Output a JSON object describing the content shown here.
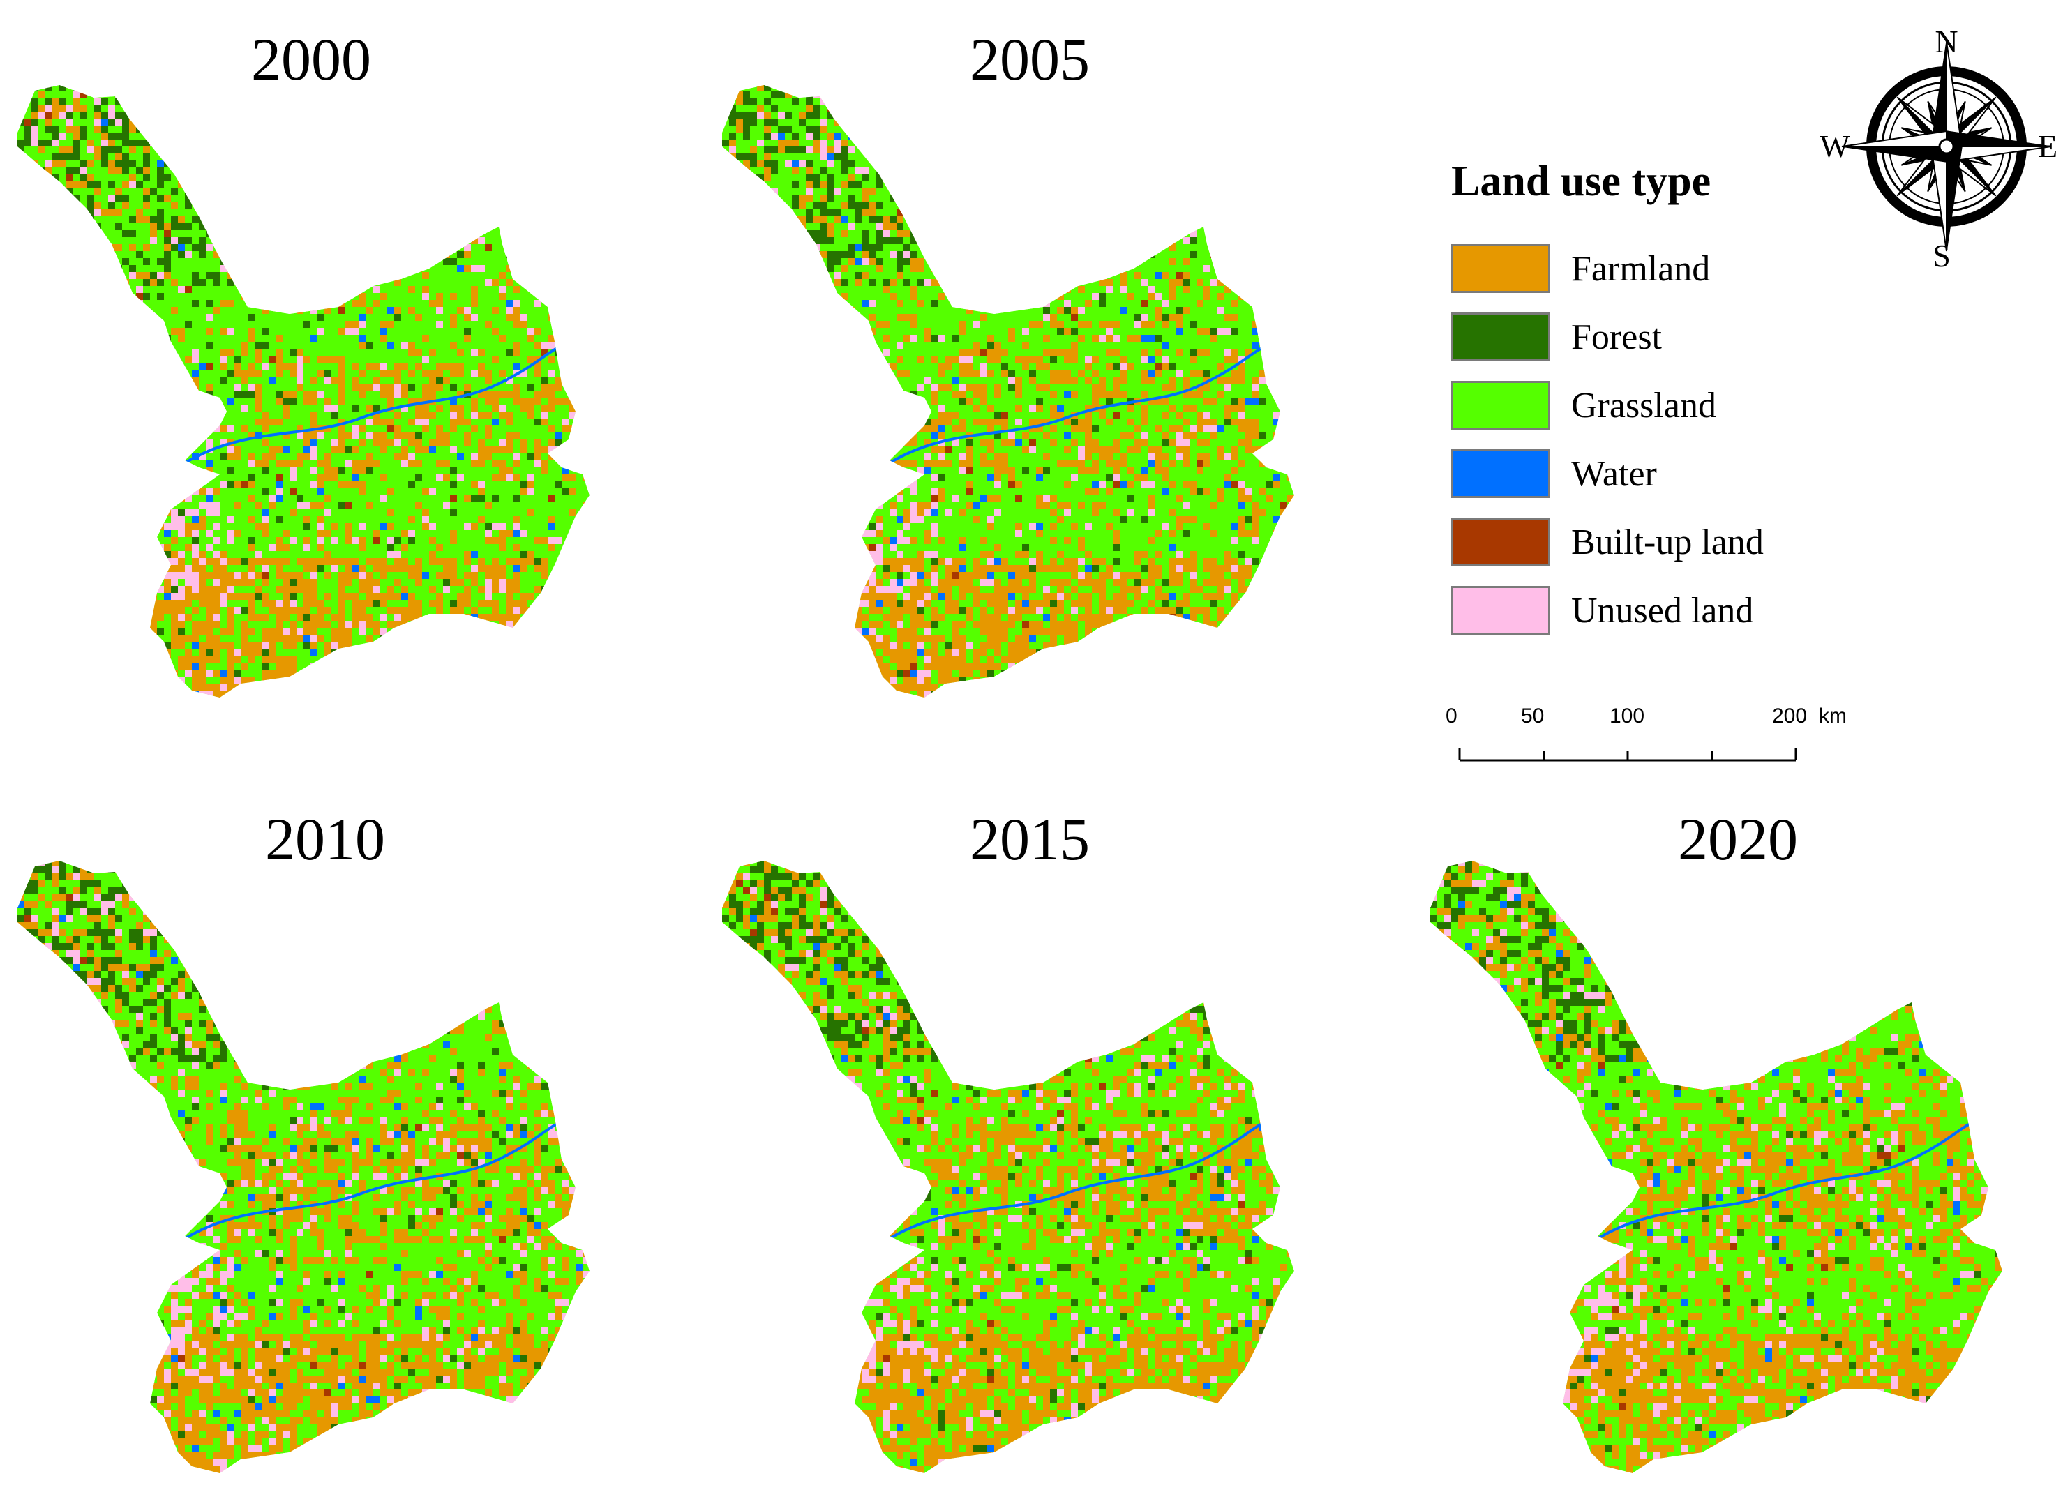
{
  "panels": [
    {
      "year": "2000"
    },
    {
      "year": "2005"
    },
    {
      "year": "2010"
    },
    {
      "year": "2015"
    },
    {
      "year": "2020"
    }
  ],
  "legend": {
    "title": "Land use type",
    "items": [
      {
        "label": "Farmland",
        "color": "#e69800"
      },
      {
        "label": "Forest",
        "color": "#267300"
      },
      {
        "label": "Grassland",
        "color": "#55ff00"
      },
      {
        "label": "Water",
        "color": "#0070ff"
      },
      {
        "label": "Built-up land",
        "color": "#a83800"
      },
      {
        "label": "Unused land",
        "color": "#ffbee8"
      }
    ]
  },
  "compass": {
    "n": "N",
    "s": "S",
    "e": "E",
    "w": "W"
  },
  "scale_bar": {
    "ticks": [
      "0",
      "50",
      "100",
      "200"
    ],
    "unit": "km"
  }
}
